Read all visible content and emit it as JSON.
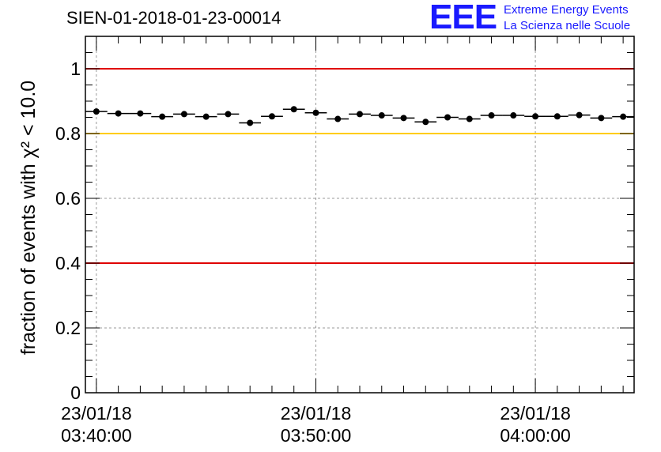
{
  "title": "SIEN-01-2018-01-23-00014",
  "logo": {
    "mark": "EEE",
    "line1": "Extreme Energy Events",
    "line2": "La Scienza nelle Scuole",
    "color": "#1a1aff"
  },
  "chart_data": {
    "type": "scatter",
    "title": "SIEN-01-2018-01-23-00014",
    "ylabel": "fraction of events with χ² < 10.0",
    "xlabel": "",
    "ylim": [
      0,
      1.1
    ],
    "yticks": [
      0,
      0.2,
      0.4,
      0.6,
      0.8,
      1
    ],
    "ytick_labels": [
      "0",
      "0.2",
      "0.4",
      "0.6",
      "0.8",
      "1"
    ],
    "x_range_minutes": [
      -0.5,
      24.5
    ],
    "x_ticks_minutes": [
      0,
      10,
      20
    ],
    "x_tick_labels": [
      [
        "23/01/18",
        "03:40:00"
      ],
      [
        "23/01/18",
        "03:50:00"
      ],
      [
        "23/01/18",
        "04:00:00"
      ]
    ],
    "grid": true,
    "reference_lines": [
      {
        "y": 1.0,
        "color": "#e00000"
      },
      {
        "y": 0.8,
        "color": "#ffcc00"
      },
      {
        "y": 0.4,
        "color": "#e00000"
      }
    ],
    "bin_width_minutes": 1,
    "series": [
      {
        "x_minutes": [
          0,
          1,
          2,
          3,
          4,
          5,
          6,
          7,
          8,
          9,
          10,
          11,
          12,
          13,
          14,
          15,
          16,
          17,
          18,
          19,
          20,
          21,
          22,
          23,
          24
        ],
        "values": [
          0.868,
          0.862,
          0.862,
          0.852,
          0.86,
          0.852,
          0.86,
          0.833,
          0.853,
          0.875,
          0.864,
          0.845,
          0.86,
          0.856,
          0.848,
          0.836,
          0.85,
          0.845,
          0.856,
          0.856,
          0.853,
          0.853,
          0.857,
          0.848,
          0.852
        ]
      }
    ]
  }
}
